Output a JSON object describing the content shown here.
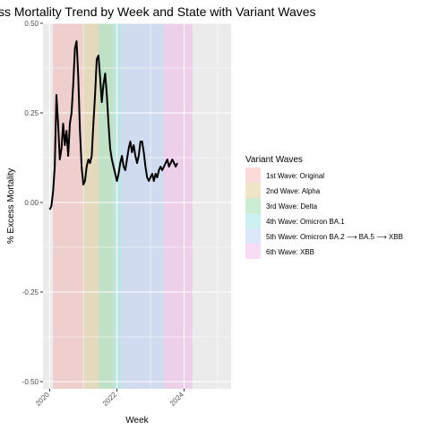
{
  "chart_data": {
    "type": "line",
    "title": "ss Mortality Trend by Week and State with Variant Waves",
    "xlabel": "Week",
    "ylabel": "% Excess Mortality",
    "xlim": [
      2019.8,
      2025.4
    ],
    "ylim": [
      -0.52,
      0.5
    ],
    "x_ticks": [
      2020,
      2022,
      2024
    ],
    "x_tick_labels": [
      "2020",
      "2022",
      "2024"
    ],
    "y_ticks": [
      -0.5,
      -0.25,
      0.0,
      0.25,
      0.5
    ],
    "y_tick_labels": [
      "-0.50",
      "-0.25",
      "0.00",
      "0.25",
      "0.50"
    ],
    "grid": true,
    "legend_position": "right",
    "legend": {
      "title": "Variant Waves",
      "entries": [
        {
          "label": "1st Wave: Original",
          "color": "#f4a3a3",
          "x_start": 2020.1,
          "x_end": 2021.0
        },
        {
          "label": "2nd Wave: Alpha",
          "color": "#d9bf77",
          "x_start": 2021.0,
          "x_end": 2021.45
        },
        {
          "label": "3rd Wave: Delta",
          "color": "#7fd18b",
          "x_start": 2021.45,
          "x_end": 2021.9
        },
        {
          "label": "4th Wave: Omicron BA.1",
          "color": "#7fd6d6",
          "x_start": 2021.9,
          "x_end": 2022.15
        },
        {
          "label": "5th Wave: Omicron BA.2 ⟶ BA.5 ⟶ XBB",
          "color": "#a9c4f5",
          "x_start": 2022.15,
          "x_end": 2023.4
        },
        {
          "label": "6th Wave: XBB",
          "color": "#f2a6e8",
          "x_start": 2023.4,
          "x_end": 2024.25
        }
      ]
    },
    "series": [
      {
        "x": [
          2020.0,
          2020.05,
          2020.1,
          2020.15,
          2020.2,
          2020.25,
          2020.3,
          2020.35,
          2020.4,
          2020.45,
          2020.5,
          2020.55,
          2020.6,
          2020.65,
          2020.7,
          2020.75,
          2020.8,
          2020.85,
          2020.9,
          2020.95,
          2021.0,
          2021.05,
          2021.1,
          2021.15,
          2021.2,
          2021.25,
          2021.3,
          2021.35,
          2021.4,
          2021.45,
          2021.5,
          2021.55,
          2021.6,
          2021.65,
          2021.7,
          2021.75,
          2021.8,
          2021.85,
          2021.9,
          2021.95,
          2022.0,
          2022.05,
          2022.1,
          2022.15,
          2022.2,
          2022.25,
          2022.3,
          2022.35,
          2022.4,
          2022.45,
          2022.5,
          2022.55,
          2022.6,
          2022.65,
          2022.7,
          2022.75,
          2022.8,
          2022.85,
          2022.9,
          2022.95,
          2023.0,
          2023.05,
          2023.1,
          2023.15,
          2023.2,
          2023.25,
          2023.3,
          2023.35,
          2023.4,
          2023.45,
          2023.5,
          2023.55,
          2023.6,
          2023.65,
          2023.7,
          2023.75,
          2023.8
        ],
        "y": [
          -0.02,
          -0.01,
          0.03,
          0.1,
          0.3,
          0.22,
          0.12,
          0.15,
          0.22,
          0.16,
          0.2,
          0.13,
          0.22,
          0.25,
          0.33,
          0.43,
          0.45,
          0.35,
          0.2,
          0.1,
          0.05,
          0.06,
          0.1,
          0.12,
          0.11,
          0.13,
          0.22,
          0.3,
          0.4,
          0.41,
          0.35,
          0.28,
          0.33,
          0.36,
          0.3,
          0.22,
          0.15,
          0.12,
          0.1,
          0.08,
          0.06,
          0.08,
          0.11,
          0.13,
          0.1,
          0.09,
          0.12,
          0.15,
          0.17,
          0.14,
          0.16,
          0.13,
          0.11,
          0.13,
          0.17,
          0.17,
          0.14,
          0.1,
          0.07,
          0.06,
          0.07,
          0.08,
          0.06,
          0.08,
          0.07,
          0.09,
          0.1,
          0.09,
          0.1,
          0.11,
          0.12,
          0.1,
          0.11,
          0.12,
          0.11,
          0.1,
          0.11
        ],
        "color": "#000000"
      }
    ]
  }
}
